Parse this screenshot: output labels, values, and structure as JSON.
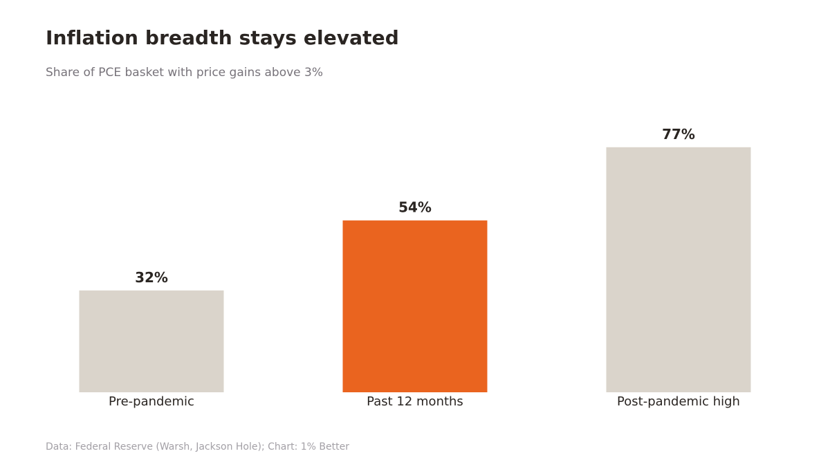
{
  "chart_data": {
    "type": "bar",
    "title": "Inflation breadth stays elevated",
    "subtitle": "Share of PCE basket with price gains above 3%",
    "categories": [
      "Pre-pandemic",
      "Past 12 months",
      "Post-pandemic high"
    ],
    "values": [
      32,
      54,
      77
    ],
    "value_labels": [
      "32%",
      "54%",
      "77%"
    ],
    "highlight_index": 1,
    "ylim": [
      0,
      100
    ],
    "grid": false,
    "legend": "none",
    "source": "Data: Federal Reserve (Warsh, Jackson Hole); Chart: 1% Better"
  },
  "colors": {
    "bar_default": "#dad4cb",
    "bar_highlight": "#ea641f",
    "title": "#2a2522",
    "subtitle": "#77737a",
    "source": "#a3a0a6"
  }
}
